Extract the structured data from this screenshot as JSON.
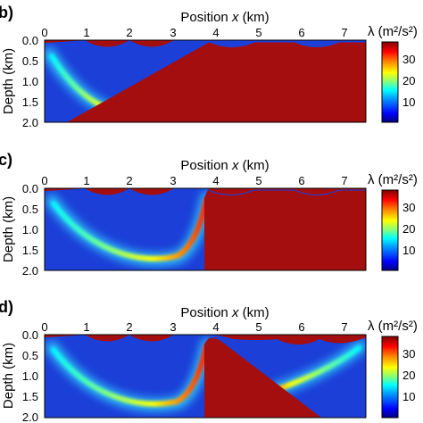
{
  "panels": [
    {
      "label": "b)",
      "xlabel_prefix": "Position ",
      "xlabel_var": "x",
      "xlabel_suffix": " (km)",
      "ylabel": "Depth (km)",
      "x_ticks": [
        "0",
        "1",
        "2",
        "3",
        "4",
        "5",
        "6",
        "7"
      ],
      "y_ticks": [
        "0.0",
        "0.5",
        "1.0",
        "1.5",
        "2.0"
      ],
      "colorbar_title": "λ (m²/s²)",
      "colorbar_ticks": [
        "30",
        "20",
        "10"
      ]
    },
    {
      "label": "c)",
      "xlabel_prefix": "Position ",
      "xlabel_var": "x",
      "xlabel_suffix": " (km)",
      "ylabel": "Depth (km)",
      "x_ticks": [
        "0",
        "1",
        "2",
        "3",
        "4",
        "5",
        "6",
        "7"
      ],
      "y_ticks": [
        "0.0",
        "0.5",
        "1.0",
        "1.5",
        "2.0"
      ],
      "colorbar_title": "λ (m²/s²)",
      "colorbar_ticks": [
        "30",
        "20",
        "10"
      ]
    },
    {
      "label": "d)",
      "xlabel_prefix": "Position ",
      "xlabel_var": "x",
      "xlabel_suffix": " (km)",
      "ylabel": "Depth (km)",
      "x_ticks": [
        "0",
        "1",
        "2",
        "3",
        "4",
        "5",
        "6",
        "7"
      ],
      "y_ticks": [
        "0.0",
        "0.5",
        "1.0",
        "1.5",
        "2.0"
      ],
      "colorbar_title": "λ (m²/s²)",
      "colorbar_ticks": [
        "30",
        "20",
        "10"
      ]
    }
  ],
  "colors": {
    "background": "#1c3fd8",
    "saturated": "#a50e0e",
    "colormap": [
      "#00007f",
      "#0000ff",
      "#00a0ff",
      "#00ffff",
      "#80ff80",
      "#ffff00",
      "#ff8000",
      "#ff0000",
      "#7f0000"
    ]
  }
}
